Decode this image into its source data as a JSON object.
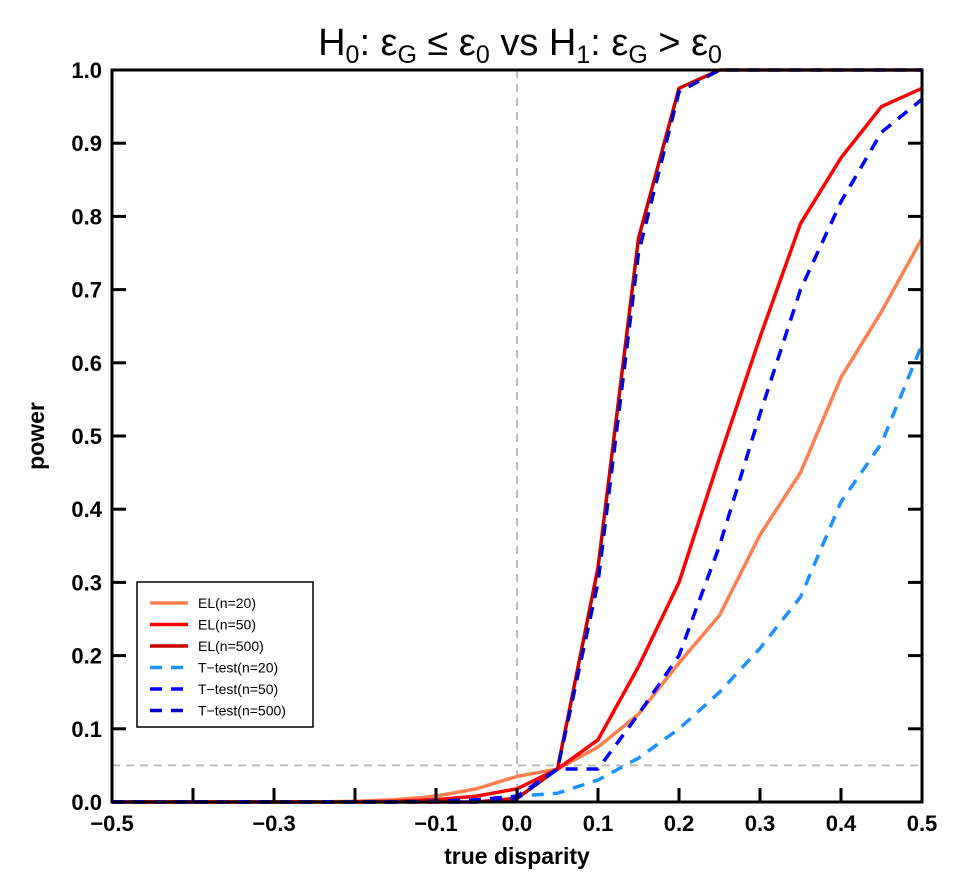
{
  "chart_data": {
    "type": "line",
    "title_parts": {
      "h0": "H",
      "h0_sub": "0",
      "h0_text": ": ε",
      "g1": "G",
      "le": " ≤ ε",
      "z1": "0",
      "vs": " vs H",
      "h1_sub": "1",
      "h1_text": ": ε",
      "g2": "G",
      "gt": " > ε",
      "z2": "0"
    },
    "xlabel": "true disparity",
    "ylabel": "power",
    "xlim": [
      -0.5,
      0.5
    ],
    "ylim": [
      0,
      1
    ],
    "x_ticks": [
      -0.5,
      -0.4,
      -0.3,
      -0.2,
      -0.1,
      0.0,
      0.1,
      0.2,
      0.3,
      0.4,
      0.5
    ],
    "x_tick_labels": [
      "−0.5",
      "",
      "−0.3",
      "",
      "−0.1",
      "0.0",
      "0.1",
      "0.2",
      "0.3",
      "0.4",
      "0.5"
    ],
    "y_ticks": [
      0,
      0.1,
      0.2,
      0.3,
      0.4,
      0.5,
      0.6,
      0.7,
      0.8,
      0.9,
      1.0
    ],
    "y_tick_labels": [
      "0.0",
      "0.1",
      "0.2",
      "0.3",
      "0.4",
      "0.5",
      "0.6",
      "0.7",
      "0.8",
      "0.9",
      "1.0"
    ],
    "reference_lines": {
      "vertical_x": 0.0,
      "horizontal_y": 0.05
    },
    "legend_position": "bottom-left",
    "x": [
      -0.5,
      -0.45,
      -0.4,
      -0.35,
      -0.3,
      -0.25,
      -0.2,
      -0.15,
      -0.1,
      -0.05,
      0,
      0.05,
      0.1,
      0.15,
      0.2,
      0.25,
      0.3,
      0.35,
      0.4,
      0.45,
      0.5
    ],
    "series": [
      {
        "name": "EL(n=20)",
        "color": "#FF7F50",
        "dashed": false,
        "values": [
          0,
          0,
          0,
          0,
          0,
          0,
          0.001,
          0.003,
          0.008,
          0.018,
          0.035,
          0.045,
          0.075,
          0.12,
          0.19,
          0.255,
          0.365,
          0.45,
          0.58,
          0.67,
          0.77
        ]
      },
      {
        "name": "EL(n=50)",
        "color": "#FF0000",
        "dashed": false,
        "values": [
          0,
          0,
          0,
          0,
          0,
          0,
          0,
          0.001,
          0.003,
          0.008,
          0.018,
          0.045,
          0.085,
          0.185,
          0.3,
          0.47,
          0.635,
          0.79,
          0.88,
          0.95,
          0.975
        ]
      },
      {
        "name": "EL(n=500)",
        "color": "#CC0000",
        "dashed": false,
        "values": [
          0,
          0,
          0,
          0,
          0,
          0,
          0,
          0,
          0,
          0,
          0.005,
          0.045,
          0.32,
          0.77,
          0.975,
          1,
          1,
          1,
          1,
          1,
          1
        ]
      },
      {
        "name": "T−test(n=20)",
        "color": "#1E90FF",
        "dashed": true,
        "values": [
          0,
          0,
          0,
          0,
          0,
          0,
          0,
          0,
          0.001,
          0.003,
          0.008,
          0.012,
          0.03,
          0.06,
          0.1,
          0.15,
          0.21,
          0.28,
          0.41,
          0.49,
          0.625
        ]
      },
      {
        "name": "T−test(n=50)",
        "color": "#0000FF",
        "dashed": true,
        "values": [
          0,
          0,
          0,
          0,
          0,
          0,
          0,
          0,
          0.001,
          0.003,
          0.008,
          0.045,
          0.045,
          0.12,
          0.2,
          0.35,
          0.53,
          0.7,
          0.82,
          0.915,
          0.96
        ]
      },
      {
        "name": "T−test(n=500)",
        "color": "#0000CD",
        "dashed": true,
        "values": [
          0,
          0,
          0,
          0,
          0,
          0,
          0,
          0,
          0,
          0,
          0.005,
          0.045,
          0.3,
          0.75,
          0.97,
          1,
          1,
          1,
          1,
          1,
          1
        ]
      }
    ]
  }
}
